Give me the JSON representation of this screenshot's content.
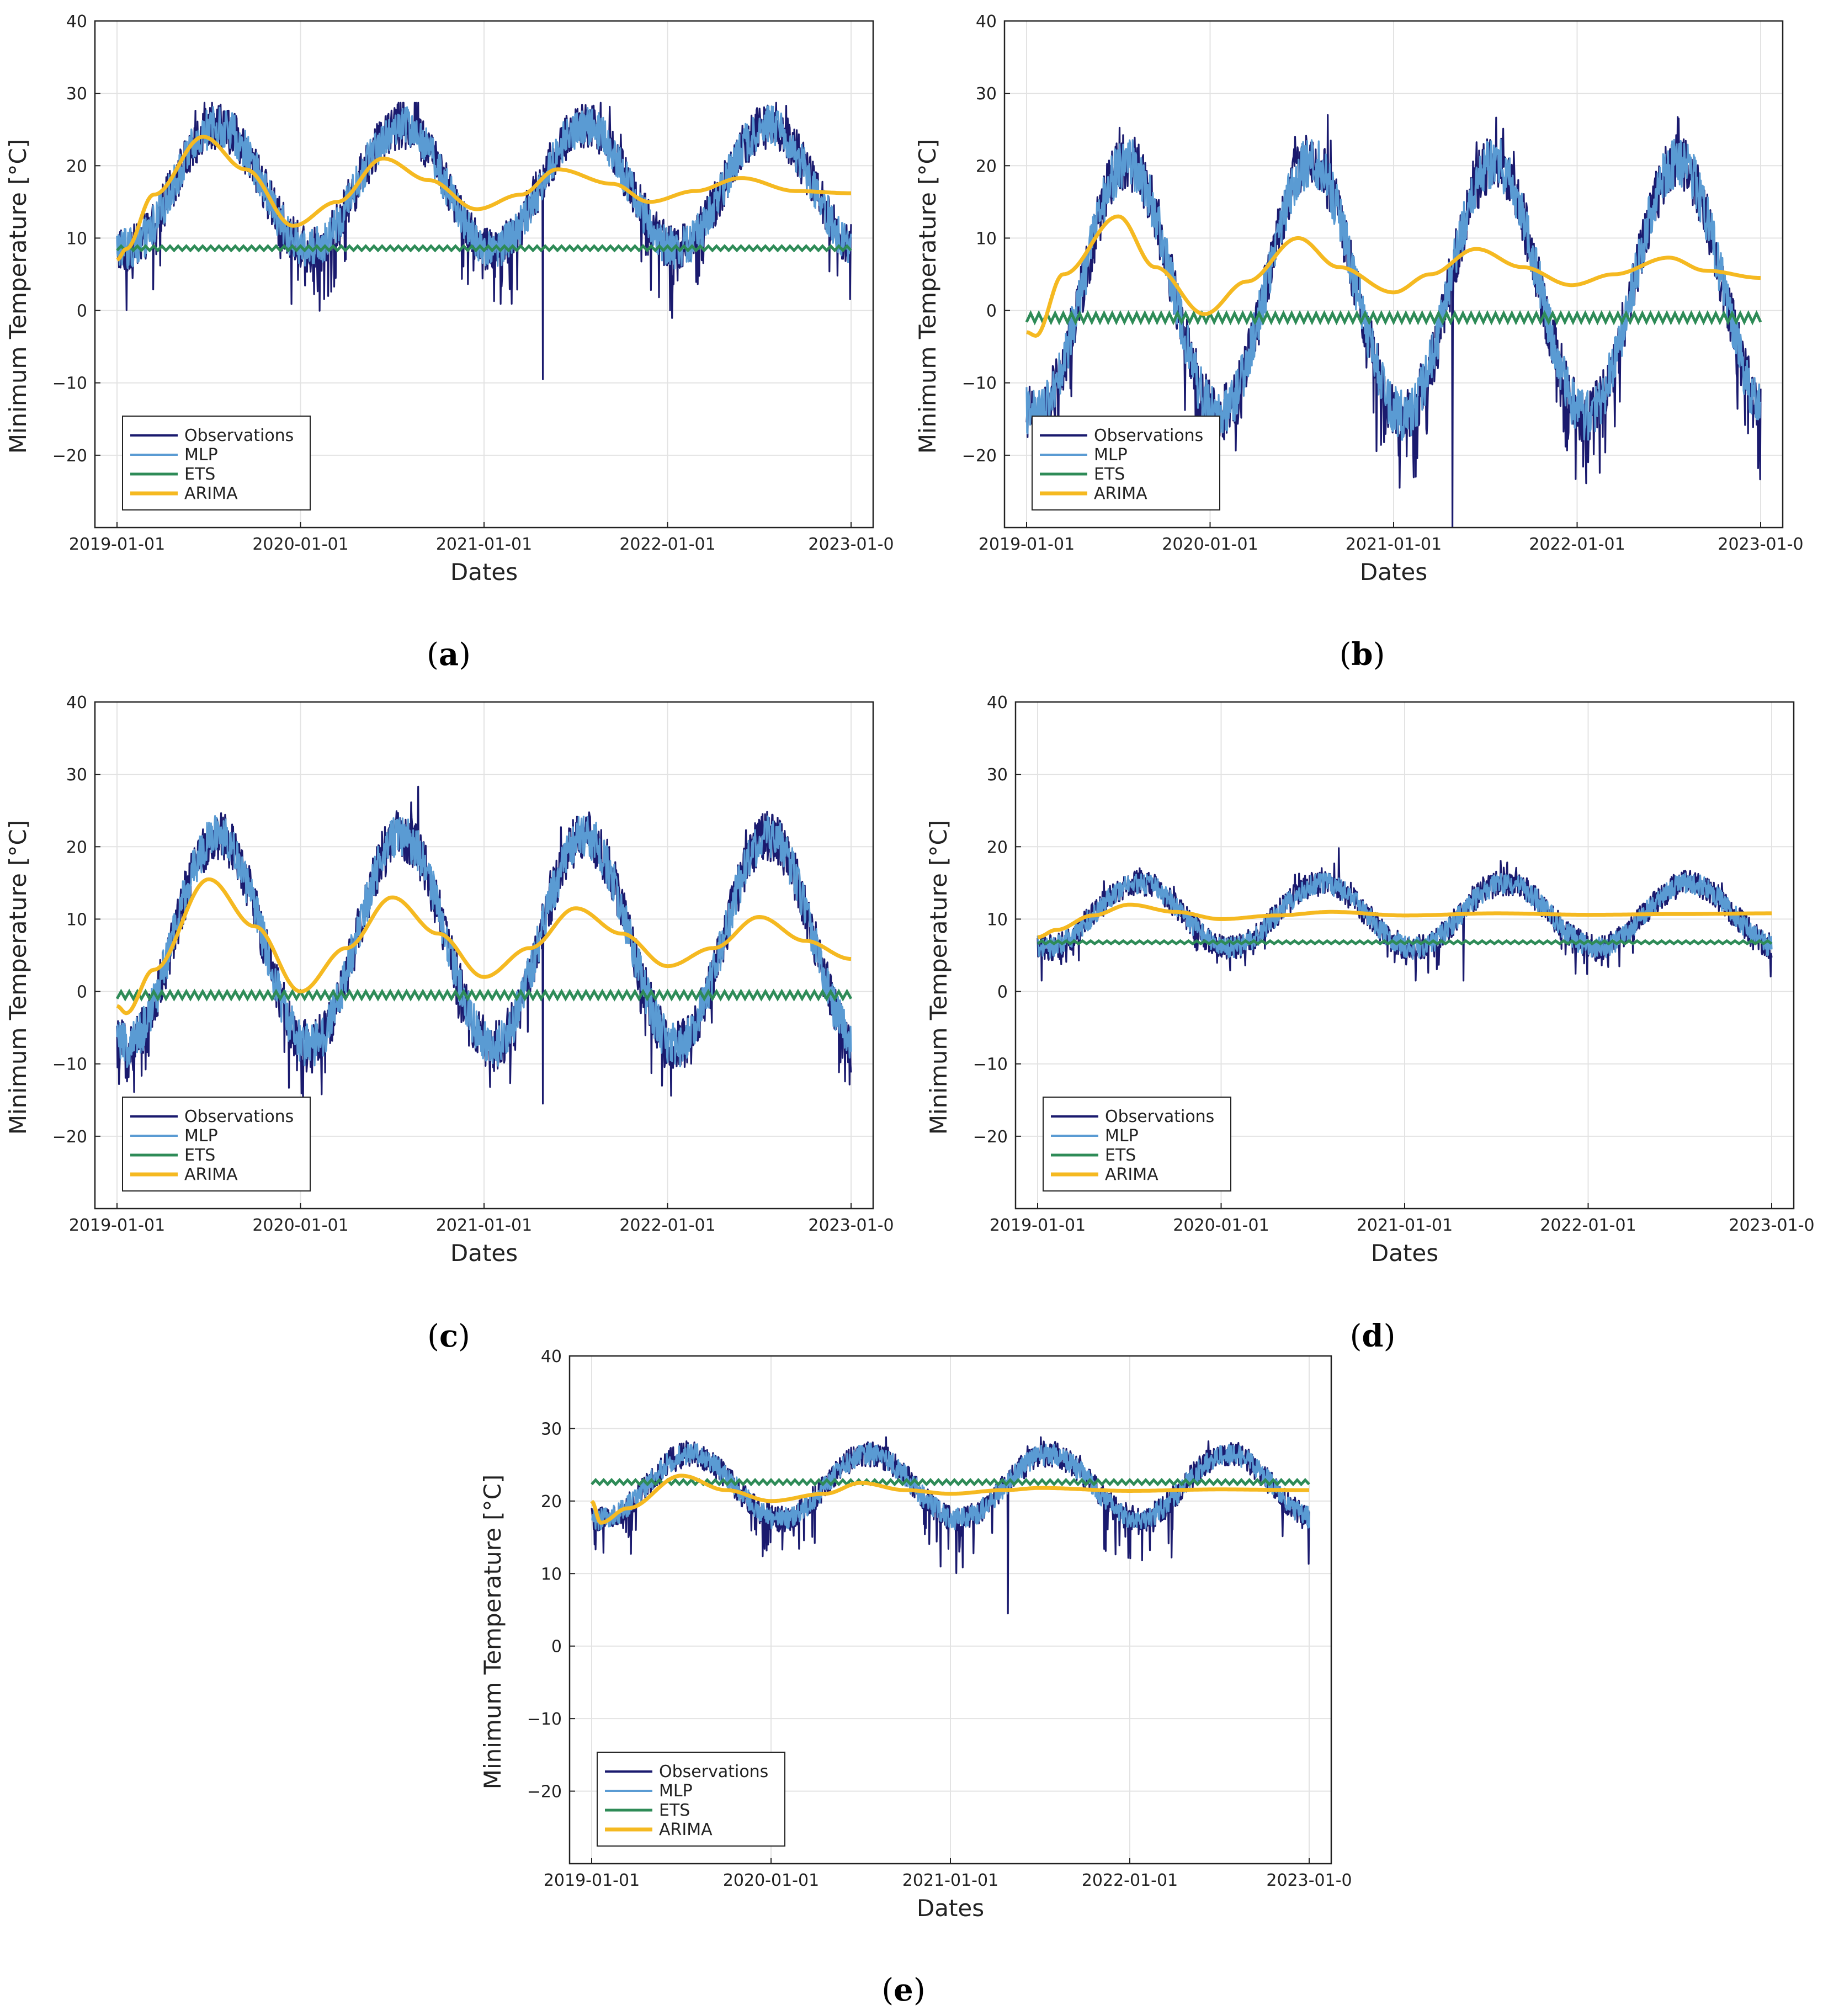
{
  "figure": {
    "series_colors": {
      "Observations": "#1a1a6e",
      "MLP": "#5a9bd3",
      "ETS": "#2e8b57",
      "ARIMA": "#f5b921"
    }
  },
  "chart_data": [
    {
      "panel": "a",
      "type": "line",
      "xlabel": "Dates",
      "ylabel": "Minimum Temperature [°C]",
      "ylim": [
        -30,
        40
      ],
      "yticks": [
        -20,
        -10,
        0,
        10,
        20,
        30,
        40
      ],
      "xlim": [
        2019.0,
        2023.0
      ],
      "xtick_labels": [
        "2019-01-01",
        "2020-01-01",
        "2021-01-01",
        "2022-01-01",
        "2023-01-0"
      ],
      "legend": [
        "Observations",
        "MLP",
        "ETS",
        "ARIMA"
      ],
      "legend_position": "bottom-left",
      "series": [
        {
          "name": "Observations",
          "note": "daily observations (dense)",
          "mean": 17,
          "amplitude": 8.5,
          "noise": 3.2,
          "dip": 5,
          "min": -9.5,
          "max": 28.7
        },
        {
          "name": "MLP",
          "mean": 17,
          "amplitude": 8.5,
          "noise": 2.8
        },
        {
          "name": "ETS",
          "value": 8.6,
          "ripple": 0.3
        },
        {
          "name": "ARIMA",
          "x": [
            2019.0,
            2019.05,
            2019.2,
            2019.47,
            2019.7,
            2019.96,
            2020.2,
            2020.45,
            2020.7,
            2020.96,
            2021.2,
            2021.4,
            2021.7,
            2021.9,
            2022.15,
            2022.4,
            2022.7,
            2023.0
          ],
          "y": [
            7,
            8.5,
            16,
            24,
            19.5,
            11.7,
            15,
            21,
            18,
            14,
            16,
            19.5,
            17.5,
            15,
            16.5,
            18.3,
            16.5,
            16.2
          ]
        }
      ]
    },
    {
      "panel": "b",
      "type": "line",
      "xlabel": "Dates",
      "ylabel": "Minimum Temperature [°C]",
      "ylim": [
        -30,
        40
      ],
      "yticks": [
        -20,
        -10,
        0,
        10,
        20,
        30,
        40
      ],
      "xlim": [
        2019.0,
        2023.0
      ],
      "xtick_labels": [
        "2019-01-01",
        "2020-01-01",
        "2021-01-01",
        "2022-01-01",
        "2023-01-0"
      ],
      "legend": [
        "Observations",
        "MLP",
        "ETS",
        "ARIMA"
      ],
      "legend_position": "bottom-left",
      "series": [
        {
          "name": "Observations",
          "note": "daily observations (dense)",
          "mean": 3,
          "amplitude": 17.5,
          "noise": 4.0,
          "dip": 5,
          "min": -30,
          "max": 27
        },
        {
          "name": "MLP",
          "mean": 3,
          "amplitude": 17.5,
          "noise": 3.5
        },
        {
          "name": "ETS",
          "value": -1.0,
          "ripple": 0.6
        },
        {
          "name": "ARIMA",
          "x": [
            2019.0,
            2019.05,
            2019.2,
            2019.5,
            2019.7,
            2019.97,
            2020.2,
            2020.48,
            2020.7,
            2021.0,
            2021.2,
            2021.45,
            2021.7,
            2021.97,
            2022.2,
            2022.5,
            2022.7,
            2023.0
          ],
          "y": [
            -3,
            -3.5,
            5,
            13,
            6,
            -0.5,
            4,
            10,
            6,
            2.5,
            5,
            8.5,
            6,
            3.5,
            5,
            7.3,
            5.5,
            4.5
          ]
        }
      ]
    },
    {
      "panel": "c",
      "type": "line",
      "xlabel": "Dates",
      "ylabel": "Minimum Temperature [°C]",
      "ylim": [
        -30,
        40
      ],
      "yticks": [
        -20,
        -10,
        0,
        10,
        20,
        30,
        40
      ],
      "xlim": [
        2019.0,
        2023.0
      ],
      "xtick_labels": [
        "2019-01-01",
        "2020-01-01",
        "2021-01-01",
        "2022-01-01",
        "2023-01-0"
      ],
      "legend": [
        "Observations",
        "MLP",
        "ETS",
        "ARIMA"
      ],
      "legend_position": "bottom-left",
      "series": [
        {
          "name": "Observations",
          "note": "daily observations (dense)",
          "mean": 7,
          "amplitude": 14.5,
          "noise": 3.5,
          "dip": 4,
          "min": -15.5,
          "max": 28.3
        },
        {
          "name": "MLP",
          "mean": 7,
          "amplitude": 14.5,
          "noise": 3.0
        },
        {
          "name": "ETS",
          "value": -0.5,
          "ripple": 0.5
        },
        {
          "name": "ARIMA",
          "x": [
            2019.0,
            2019.05,
            2019.2,
            2019.5,
            2019.75,
            2020.0,
            2020.25,
            2020.5,
            2020.75,
            2021.0,
            2021.25,
            2021.5,
            2021.75,
            2022.0,
            2022.25,
            2022.5,
            2022.75,
            2023.0
          ],
          "y": [
            -2,
            -3,
            3,
            15.5,
            9,
            0,
            6,
            13,
            8,
            2,
            6,
            11.5,
            8,
            3.5,
            6,
            10.3,
            7,
            4.5
          ]
        }
      ]
    },
    {
      "panel": "d",
      "type": "line",
      "xlabel": "Dates",
      "ylabel": "Minimum Temperature [°C]",
      "ylim": [
        -30,
        40
      ],
      "yticks": [
        -20,
        -10,
        0,
        10,
        20,
        30,
        40
      ],
      "xlim": [
        2019.0,
        2023.0
      ],
      "xtick_labels": [
        "2019-01-01",
        "2020-01-01",
        "2021-01-01",
        "2022-01-01",
        "2023-01-0"
      ],
      "legend": [
        "Observations",
        "MLP",
        "ETS",
        "ARIMA"
      ],
      "legend_position": "bottom-left",
      "series": [
        {
          "name": "Observations",
          "note": "daily observations (dense)",
          "mean": 10.5,
          "amplitude": 4.5,
          "noise": 1.8,
          "dip": 2,
          "min": 1.5,
          "max": 19.8
        },
        {
          "name": "MLP",
          "mean": 10.5,
          "amplitude": 4.5,
          "noise": 1.5
        },
        {
          "name": "ETS",
          "value": 6.8,
          "ripple": 0.2
        },
        {
          "name": "ARIMA",
          "x": [
            2019.0,
            2019.1,
            2019.3,
            2019.5,
            2019.75,
            2020.0,
            2020.3,
            2020.6,
            2021.0,
            2021.5,
            2022.0,
            2022.5,
            2023.0
          ],
          "y": [
            7.5,
            8.5,
            10.5,
            12,
            11,
            10,
            10.5,
            11,
            10.5,
            10.8,
            10.6,
            10.7,
            10.8
          ]
        }
      ]
    },
    {
      "panel": "e",
      "type": "line",
      "xlabel": "Dates",
      "ylabel": "Minimum Temperature [°C]",
      "ylim": [
        -30,
        40
      ],
      "yticks": [
        -20,
        -10,
        0,
        10,
        20,
        30,
        40
      ],
      "xlim": [
        2019.0,
        2023.0
      ],
      "xtick_labels": [
        "2019-01-01",
        "2020-01-01",
        "2021-01-01",
        "2022-01-01",
        "2023-01-0"
      ],
      "legend": [
        "Observations",
        "MLP",
        "ETS",
        "ARIMA"
      ],
      "legend_position": "bottom-left",
      "series": [
        {
          "name": "Observations",
          "note": "daily observations (dense)",
          "mean": 22,
          "amplitude": 4.5,
          "noise": 1.8,
          "dip": 4,
          "min": 4.5,
          "max": 28.8
        },
        {
          "name": "MLP",
          "mean": 22,
          "amplitude": 4.5,
          "noise": 1.5
        },
        {
          "name": "ETS",
          "value": 22.6,
          "ripple": 0.3
        },
        {
          "name": "ARIMA",
          "x": [
            2019.0,
            2019.05,
            2019.2,
            2019.5,
            2019.75,
            2020.0,
            2020.3,
            2020.5,
            2020.75,
            2021.0,
            2021.3,
            2021.5,
            2022.0,
            2022.5,
            2023.0
          ],
          "y": [
            20,
            17,
            19,
            23.5,
            21.5,
            20,
            21,
            22.5,
            21.5,
            21,
            21.5,
            21.8,
            21.4,
            21.6,
            21.5
          ]
        }
      ]
    }
  ],
  "panel_labels": [
    {
      "open": "(",
      "letter": "a",
      "close": ")"
    },
    {
      "open": "(",
      "letter": "b",
      "close": ")"
    },
    {
      "open": "(",
      "letter": "c",
      "close": ")"
    },
    {
      "open": "(",
      "letter": "d",
      "close": ")"
    },
    {
      "open": "(",
      "letter": "e",
      "close": ")"
    }
  ]
}
